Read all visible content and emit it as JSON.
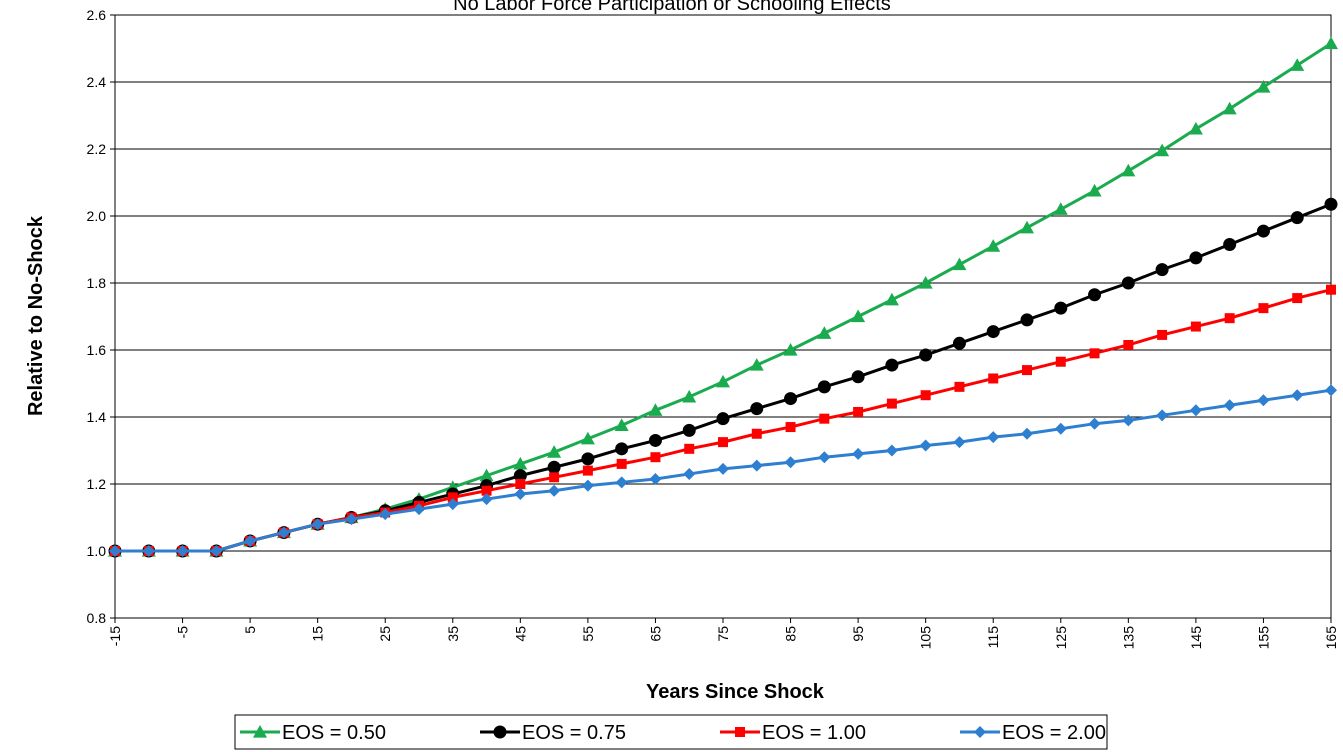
{
  "chart_data": {
    "type": "line",
    "title": "No Labor Force Participation or Schooling Effects",
    "x_label": "Years Since Shock",
    "y_label": "Relative to No-Shock",
    "x": [
      -15,
      -10,
      -5,
      0,
      5,
      10,
      15,
      20,
      25,
      30,
      35,
      40,
      45,
      50,
      55,
      60,
      65,
      70,
      75,
      80,
      85,
      90,
      95,
      100,
      105,
      110,
      115,
      120,
      125,
      130,
      135,
      140,
      145,
      150,
      155,
      160,
      165
    ],
    "xlim": [
      -15,
      165
    ],
    "xticks": [
      -15,
      -5,
      5,
      15,
      25,
      35,
      45,
      55,
      65,
      75,
      85,
      95,
      105,
      115,
      125,
      135,
      145,
      155,
      165
    ],
    "ylim": [
      0.8,
      2.6
    ],
    "yticks": [
      0.8,
      {
        "value": 1.0,
        "label": "1.0"
      },
      1.2,
      1.4,
      1.6,
      1.8,
      {
        "value": 2.0,
        "label": "2.0"
      },
      2.2,
      2.4,
      2.6
    ],
    "grid": true,
    "legend": "bottom",
    "series": [
      {
        "name": "EOS = 0.50",
        "color": "#1aab4f",
        "marker": "triangle",
        "values": [
          1,
          1,
          1,
          1,
          1.03,
          1.055,
          1.08,
          1.1,
          1.125,
          1.155,
          1.19,
          1.225,
          1.26,
          1.295,
          1.335,
          1.375,
          1.42,
          1.46,
          1.505,
          1.555,
          1.6,
          1.65,
          1.7,
          1.75,
          1.8,
          1.855,
          1.91,
          1.965,
          2.02,
          2.075,
          2.135,
          2.195,
          2.26,
          2.32,
          2.385,
          2.45,
          2.515
        ]
      },
      {
        "name": "EOS = 0.75",
        "color": "#000000",
        "marker": "circle",
        "values": [
          1,
          1,
          1,
          1,
          1.03,
          1.055,
          1.08,
          1.1,
          1.12,
          1.145,
          1.17,
          1.195,
          1.225,
          1.25,
          1.275,
          1.305,
          1.33,
          1.36,
          1.395,
          1.425,
          1.455,
          1.49,
          1.52,
          1.555,
          1.585,
          1.62,
          1.655,
          1.69,
          1.725,
          1.765,
          1.8,
          1.84,
          1.875,
          1.915,
          1.955,
          1.995,
          2.035
        ]
      },
      {
        "name": "EOS = 1.00",
        "color": "#ff0000",
        "marker": "square",
        "values": [
          1,
          1,
          1,
          1,
          1.03,
          1.055,
          1.08,
          1.1,
          1.115,
          1.135,
          1.16,
          1.18,
          1.2,
          1.22,
          1.24,
          1.26,
          1.28,
          1.305,
          1.325,
          1.35,
          1.37,
          1.395,
          1.415,
          1.44,
          1.465,
          1.49,
          1.515,
          1.54,
          1.565,
          1.59,
          1.615,
          1.645,
          1.67,
          1.695,
          1.725,
          1.755,
          1.78
        ]
      },
      {
        "name": "EOS = 2.00",
        "color": "#2e7fd0",
        "marker": "diamond",
        "values": [
          1,
          1,
          1,
          1,
          1.03,
          1.055,
          1.08,
          1.095,
          1.11,
          1.125,
          1.14,
          1.155,
          1.17,
          1.18,
          1.195,
          1.205,
          1.215,
          1.23,
          1.245,
          1.255,
          1.265,
          1.28,
          1.29,
          1.3,
          1.315,
          1.325,
          1.34,
          1.35,
          1.365,
          1.38,
          1.39,
          1.405,
          1.42,
          1.435,
          1.45,
          1.465,
          1.48
        ]
      }
    ]
  }
}
